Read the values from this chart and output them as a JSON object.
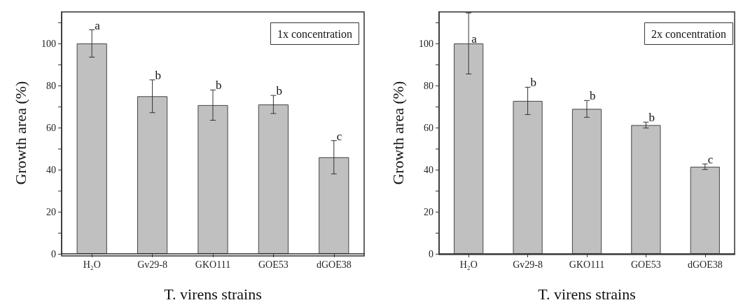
{
  "chart_data": [
    {
      "type": "bar",
      "categories": [
        "H₂O",
        "Gv29-8",
        "GKO111",
        "GOE53",
        "dGOE38"
      ],
      "values": [
        100,
        74.9,
        70.7,
        71.0,
        45.9
      ],
      "errors": [
        6.5,
        7.8,
        7.2,
        4.3,
        7.9
      ],
      "color": "#c0c0c0",
      "ylabel": "Growth area (%)",
      "xlabel": "T. virens strains",
      "ylim": [
        0,
        115
      ],
      "yticks": [
        0,
        {
          "value": 10,
          "label": null
        },
        20,
        {
          "value": 30,
          "label": null
        },
        40,
        {
          "value": 50,
          "label": null
        },
        60,
        {
          "value": 70,
          "label": null
        },
        80,
        {
          "value": 90,
          "label": null
        },
        100,
        {
          "value": 110,
          "label": null
        }
      ],
      "grid": false,
      "annotations": [
        "1x concentration",
        {
          "text": "a",
          "x": "H₂O",
          "y": 106.5
        },
        {
          "text": "b",
          "x": "Gv29-8",
          "y": 82.7
        },
        {
          "text": "b",
          "x": "GKO111",
          "y": 77.9
        },
        {
          "text": "b",
          "x": "GOE53",
          "y": 75.3
        },
        {
          "text": "c",
          "x": "dGOE38",
          "y": 53.8
        }
      ]
    },
    {
      "type": "bar",
      "categories": [
        "H₂O",
        "Gv29-8",
        "GKO111",
        "GOE53",
        "dGOE38"
      ],
      "values": [
        100,
        72.7,
        68.9,
        61.2,
        41.4
      ],
      "errors": [
        14.5,
        6.5,
        4.0,
        1.4,
        1.3
      ],
      "color": "#c0c0c0",
      "ylabel": "Growth area (%)",
      "xlabel": "T. virens strains",
      "ylim": [
        0,
        115
      ],
      "yticks": [
        0,
        {
          "value": 10,
          "label": null
        },
        20,
        {
          "value": 30,
          "label": null
        },
        40,
        {
          "value": 50,
          "label": null
        },
        60,
        {
          "value": 70,
          "label": null
        },
        80,
        {
          "value": 90,
          "label": null
        },
        100,
        {
          "value": 110,
          "label": null
        }
      ],
      "grid": false,
      "annotations": [
        "2x concentration",
        {
          "text": "a",
          "x": "H₂O",
          "y": 100
        },
        {
          "text": "b",
          "x": "Gv29-8",
          "y": 79.2
        },
        {
          "text": "b",
          "x": "GKO111",
          "y": 72.9
        },
        {
          "text": "b",
          "x": "GOE53",
          "y": 62.6
        },
        {
          "text": "c",
          "x": "dGOE38",
          "y": 42.7
        }
      ]
    }
  ]
}
